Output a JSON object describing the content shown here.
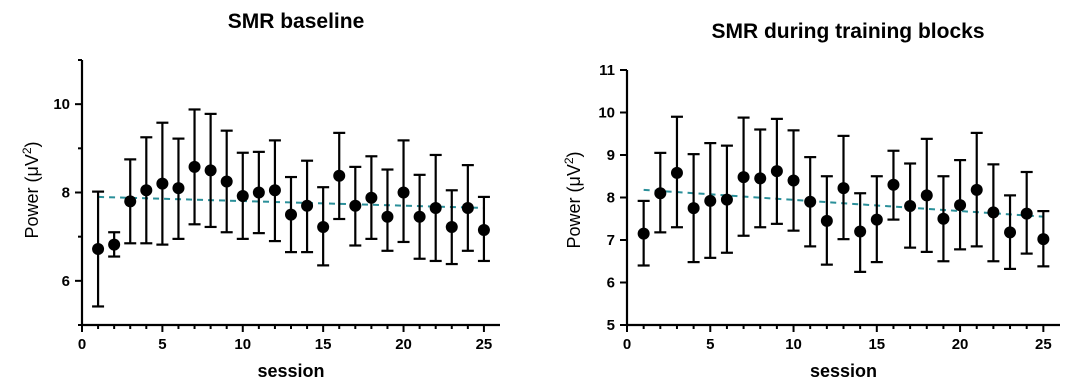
{
  "chart_data": [
    {
      "type": "scatter",
      "title": "SMR baseline",
      "xlabel": "session",
      "ylabel": "Power (μV²)",
      "ylabel_main": "Power (",
      "ylabel_unit": "μV",
      "ylabel_exp": "2",
      "ylabel_close": ")",
      "xlim": [
        0,
        26
      ],
      "ylim": [
        5,
        11
      ],
      "xticks": [
        0,
        5,
        10,
        15,
        20,
        25
      ],
      "yticks": [
        6,
        8,
        10
      ],
      "x": [
        1,
        2,
        3,
        4,
        5,
        6,
        7,
        8,
        9,
        10,
        11,
        12,
        13,
        14,
        15,
        16,
        17,
        18,
        19,
        20,
        21,
        22,
        23,
        24,
        25
      ],
      "y": [
        6.72,
        6.82,
        7.8,
        8.05,
        8.2,
        8.1,
        8.58,
        8.5,
        8.25,
        7.92,
        8.0,
        8.05,
        7.5,
        7.7,
        7.22,
        8.38,
        7.7,
        7.88,
        7.45,
        8.0,
        7.45,
        7.65,
        7.22,
        7.65,
        7.15
      ],
      "err_high": [
        8.02,
        7.1,
        8.75,
        9.25,
        9.58,
        9.22,
        9.88,
        9.78,
        9.4,
        8.9,
        8.92,
        9.18,
        8.35,
        8.72,
        8.12,
        9.35,
        8.58,
        8.82,
        8.52,
        9.18,
        8.4,
        8.85,
        8.05,
        8.62,
        7.9
      ],
      "err_low": [
        5.42,
        6.55,
        6.85,
        6.85,
        6.82,
        6.95,
        7.28,
        7.22,
        7.1,
        6.95,
        7.08,
        6.9,
        6.65,
        6.65,
        6.35,
        7.4,
        6.8,
        6.95,
        6.68,
        6.88,
        6.5,
        6.45,
        6.38,
        6.68,
        6.45
      ],
      "trend": {
        "x": [
          1,
          25
        ],
        "y": [
          7.9,
          7.65
        ],
        "color": "#2a8f99"
      },
      "marker_color": "#000000"
    },
    {
      "type": "scatter",
      "title": "SMR during training blocks",
      "xlabel": "session",
      "ylabel": "Power (μV²)",
      "ylabel_main": "Power (",
      "ylabel_unit": "μV",
      "ylabel_exp": "2",
      "ylabel_close": ")",
      "xlim": [
        0,
        26
      ],
      "ylim": [
        5,
        11
      ],
      "xticks": [
        0,
        5,
        10,
        15,
        20,
        25
      ],
      "yticks": [
        5,
        6,
        7,
        8,
        9,
        10,
        11
      ],
      "x": [
        1,
        2,
        3,
        4,
        5,
        6,
        7,
        8,
        9,
        10,
        11,
        12,
        13,
        14,
        15,
        16,
        17,
        18,
        19,
        20,
        21,
        22,
        23,
        24,
        25
      ],
      "y": [
        7.15,
        8.1,
        8.58,
        7.75,
        7.92,
        7.95,
        8.48,
        8.45,
        8.62,
        8.4,
        7.9,
        7.45,
        8.22,
        7.2,
        7.48,
        8.3,
        7.8,
        8.05,
        7.5,
        7.82,
        8.18,
        7.65,
        7.18,
        7.62,
        7.02
      ],
      "err_high": [
        7.92,
        9.05,
        9.9,
        9.02,
        9.28,
        9.22,
        9.88,
        9.6,
        9.85,
        9.58,
        8.95,
        8.5,
        9.45,
        8.1,
        8.5,
        9.1,
        8.8,
        9.38,
        8.5,
        8.88,
        9.52,
        8.78,
        8.05,
        8.6,
        7.68
      ],
      "err_low": [
        6.4,
        7.18,
        7.3,
        6.48,
        6.58,
        6.7,
        7.1,
        7.3,
        7.38,
        7.22,
        6.85,
        6.42,
        7.02,
        6.25,
        6.48,
        7.48,
        6.82,
        6.72,
        6.5,
        6.78,
        6.85,
        6.5,
        6.32,
        6.68,
        6.38
      ],
      "trend": {
        "x": [
          1,
          25
        ],
        "y": [
          8.18,
          7.55
        ],
        "color": "#2a8f99"
      },
      "marker_color": "#000000"
    }
  ]
}
